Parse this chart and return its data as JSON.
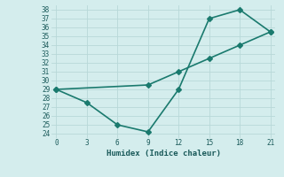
{
  "line1_x": [
    0,
    3,
    6,
    9,
    12,
    15,
    18,
    21
  ],
  "line1_y": [
    29,
    27.5,
    25,
    24.2,
    29,
    37,
    38,
    35.5
  ],
  "line2_x": [
    0,
    9,
    12,
    15,
    18,
    21
  ],
  "line2_y": [
    29,
    29.5,
    31,
    32.5,
    34.0,
    35.5
  ],
  "line_color": "#1a7a6e",
  "bg_color": "#d4eded",
  "grid_color": "#b8d8d8",
  "xlabel": "Humidex (Indice chaleur)",
  "xlim": [
    -0.5,
    21.5
  ],
  "ylim": [
    23.5,
    38.5
  ],
  "xticks": [
    0,
    3,
    6,
    9,
    12,
    15,
    18,
    21
  ],
  "yticks": [
    24,
    25,
    26,
    27,
    28,
    29,
    30,
    31,
    32,
    33,
    34,
    35,
    36,
    37,
    38
  ],
  "marker": "D",
  "marker_size": 3,
  "line_width": 1.2,
  "tick_fontsize": 5.5,
  "xlabel_fontsize": 6.5
}
